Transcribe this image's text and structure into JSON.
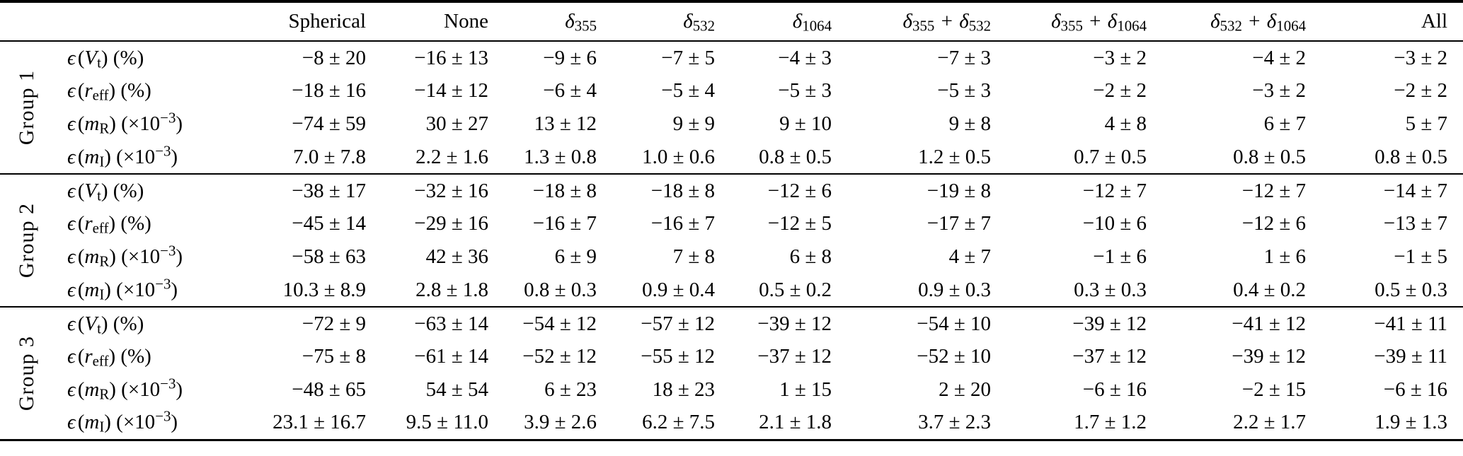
{
  "columns": [
    {
      "a": "Spherical"
    },
    {
      "a": "None"
    },
    {
      "a": "δ",
      "asub": "355"
    },
    {
      "a": "δ",
      "asub": "532"
    },
    {
      "a": "δ",
      "asub": "1064"
    },
    {
      "a": "δ",
      "asub": "355",
      "plus": " + ",
      "b": "δ",
      "bsub": "532"
    },
    {
      "a": "δ",
      "asub": "355",
      "plus": " + ",
      "b": "δ",
      "bsub": "1064"
    },
    {
      "a": "δ",
      "asub": "532",
      "plus": " + ",
      "b": "δ",
      "bsub": "1064"
    },
    {
      "a": "All"
    }
  ],
  "row_labels": [
    {
      "eps": "ϵ",
      "pre": "(",
      "var": "V",
      "sub": "t",
      "post": ") (%)",
      "sup": "",
      "end": ""
    },
    {
      "eps": "ϵ",
      "pre": "(",
      "var": "r",
      "sub": "eff",
      "post": ") (%)",
      "sup": "",
      "end": ""
    },
    {
      "eps": "ϵ",
      "pre": "(",
      "var": "m",
      "sub": "R",
      "post": ") (×10",
      "sup": "−3",
      "end": ")"
    },
    {
      "eps": "ϵ",
      "pre": "(",
      "var": "m",
      "sub": "I",
      "post": ") (×10",
      "sup": "−3",
      "end": ")"
    }
  ],
  "groups": [
    {
      "label": "Group 1",
      "rows": [
        {
          "values": [
            "−8 ± 20",
            "−16 ± 13",
            "−9 ± 6",
            "−7 ± 5",
            "−4 ± 3",
            "−7 ± 3",
            "−3 ± 2",
            "−4 ± 2",
            "−3 ± 2"
          ]
        },
        {
          "values": [
            "−18 ± 16",
            "−14 ± 12",
            "−6 ± 4",
            "−5 ± 4",
            "−5 ± 3",
            "−5 ± 3",
            "−2 ± 2",
            "−3 ± 2",
            "−2 ± 2"
          ]
        },
        {
          "values": [
            "−74 ± 59",
            "30 ± 27",
            "13 ± 12",
            "9 ± 9",
            "9 ± 10",
            "9 ± 8",
            "4 ± 8",
            "6 ± 7",
            "5 ± 7"
          ]
        },
        {
          "values": [
            "7.0 ± 7.8",
            "2.2 ± 1.6",
            "1.3 ± 0.8",
            "1.0 ± 0.6",
            "0.8 ± 0.5",
            "1.2 ± 0.5",
            "0.7 ± 0.5",
            "0.8 ± 0.5",
            "0.8 ± 0.5"
          ]
        }
      ]
    },
    {
      "label": "Group 2",
      "rows": [
        {
          "values": [
            "−38 ± 17",
            "−32 ± 16",
            "−18 ± 8",
            "−18 ± 8",
            "−12 ± 6",
            "−19 ± 8",
            "−12 ± 7",
            "−12 ± 7",
            "−14 ± 7"
          ]
        },
        {
          "values": [
            "−45 ± 14",
            "−29 ± 16",
            "−16 ± 7",
            "−16 ± 7",
            "−12 ± 5",
            "−17 ± 7",
            "−10 ± 6",
            "−12 ± 6",
            "−13 ± 7"
          ]
        },
        {
          "values": [
            "−58 ± 63",
            "42 ± 36",
            "6 ± 9",
            "7 ± 8",
            "6 ± 8",
            "4 ± 7",
            "−1 ± 6",
            "1 ± 6",
            "−1 ± 5"
          ]
        },
        {
          "values": [
            "10.3 ± 8.9",
            "2.8 ± 1.8",
            "0.8 ± 0.3",
            "0.9 ± 0.4",
            "0.5 ± 0.2",
            "0.9 ± 0.3",
            "0.3 ± 0.3",
            "0.4 ± 0.2",
            "0.5 ± 0.3"
          ]
        }
      ]
    },
    {
      "label": "Group 3",
      "rows": [
        {
          "values": [
            "−72 ± 9",
            "−63 ± 14",
            "−54 ± 12",
            "−57 ± 12",
            "−39 ± 12",
            "−54 ± 10",
            "−39 ± 12",
            "−41 ± 12",
            "−41 ± 11"
          ]
        },
        {
          "values": [
            "−75 ± 8",
            "−61 ± 14",
            "−52 ± 12",
            "−55 ± 12",
            "−37 ± 12",
            "−52 ± 10",
            "−37 ± 12",
            "−39 ± 12",
            "−39 ± 11"
          ]
        },
        {
          "values": [
            "−48 ± 65",
            "54 ± 54",
            "6 ± 23",
            "18 ± 23",
            "1 ± 15",
            "2 ± 20",
            "−6 ± 16",
            "−2 ± 15",
            "−6 ± 16"
          ]
        },
        {
          "values": [
            "23.1 ± 16.7",
            "9.5 ± 11.0",
            "3.9 ± 2.6",
            "6.2 ± 7.5",
            "2.1 ± 1.8",
            "3.7 ± 2.3",
            "1.7 ± 1.2",
            "2.2 ± 1.7",
            "1.9 ± 1.3"
          ]
        }
      ]
    }
  ]
}
